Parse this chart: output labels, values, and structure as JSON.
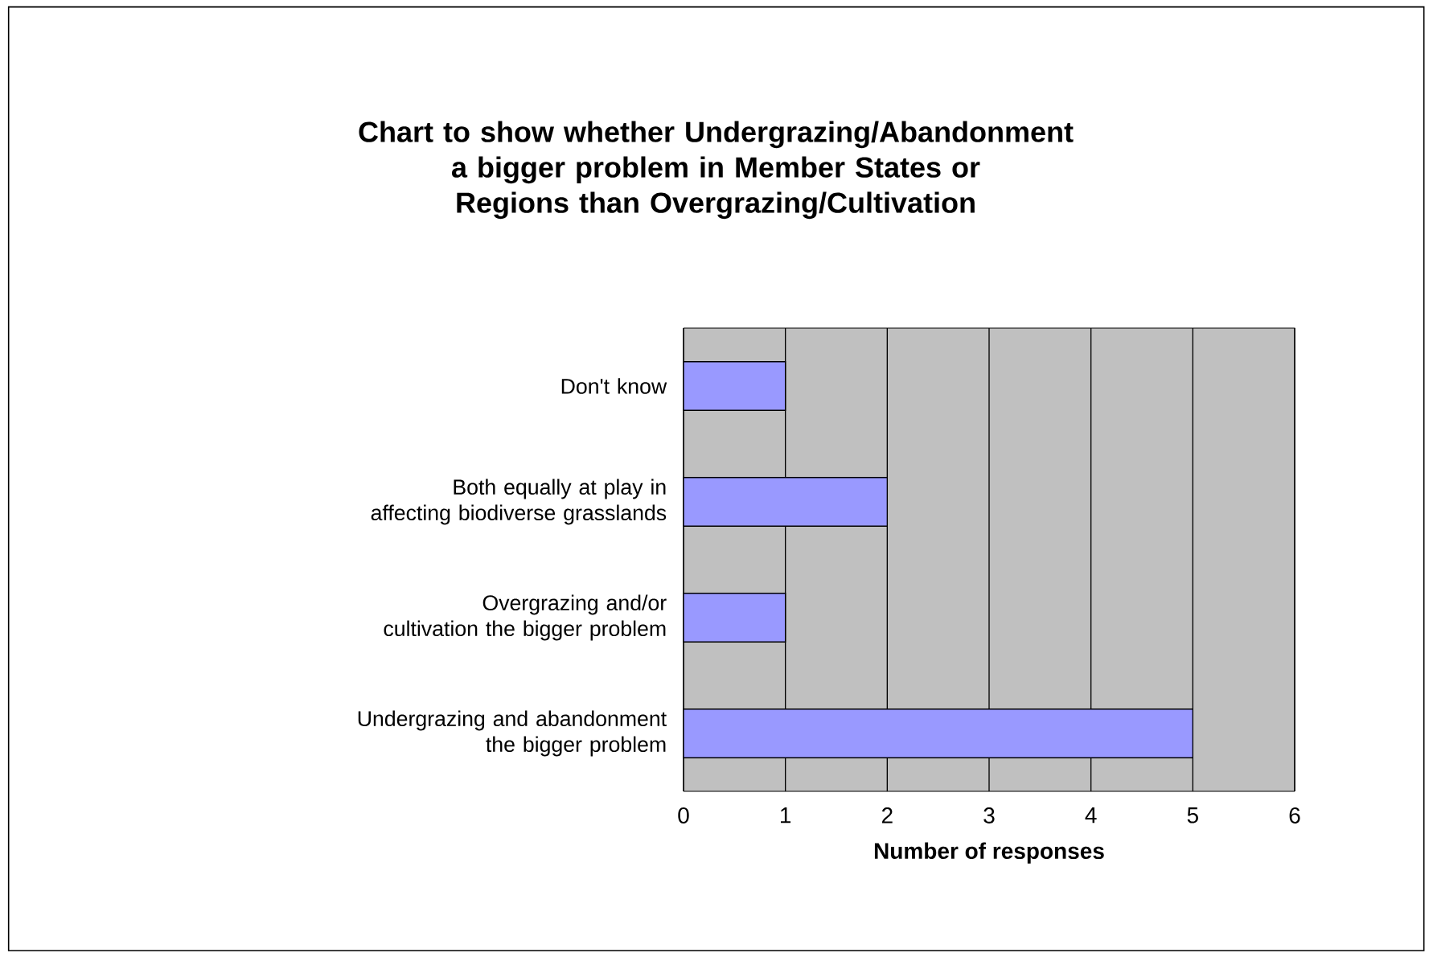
{
  "chart_data": {
    "type": "bar",
    "orientation": "horizontal",
    "title": "Chart to show whether Undergrazing/Abandonment a bigger problem in Member States or Regions than Overgrazing/Cultivation",
    "xlabel": "Number of responses",
    "categories": [
      "Don't know",
      "Both equally at play in affecting biodiverse grasslands",
      "Overgrazing and/or cultivation the bigger problem",
      "Undergrazing and abandonment the bigger problem"
    ],
    "values": [
      1,
      2,
      1,
      5
    ],
    "color": "#9999ff",
    "xlim": [
      0,
      6
    ],
    "xticks": [
      0,
      1,
      2,
      3,
      4,
      5,
      6
    ],
    "grid": "x"
  }
}
